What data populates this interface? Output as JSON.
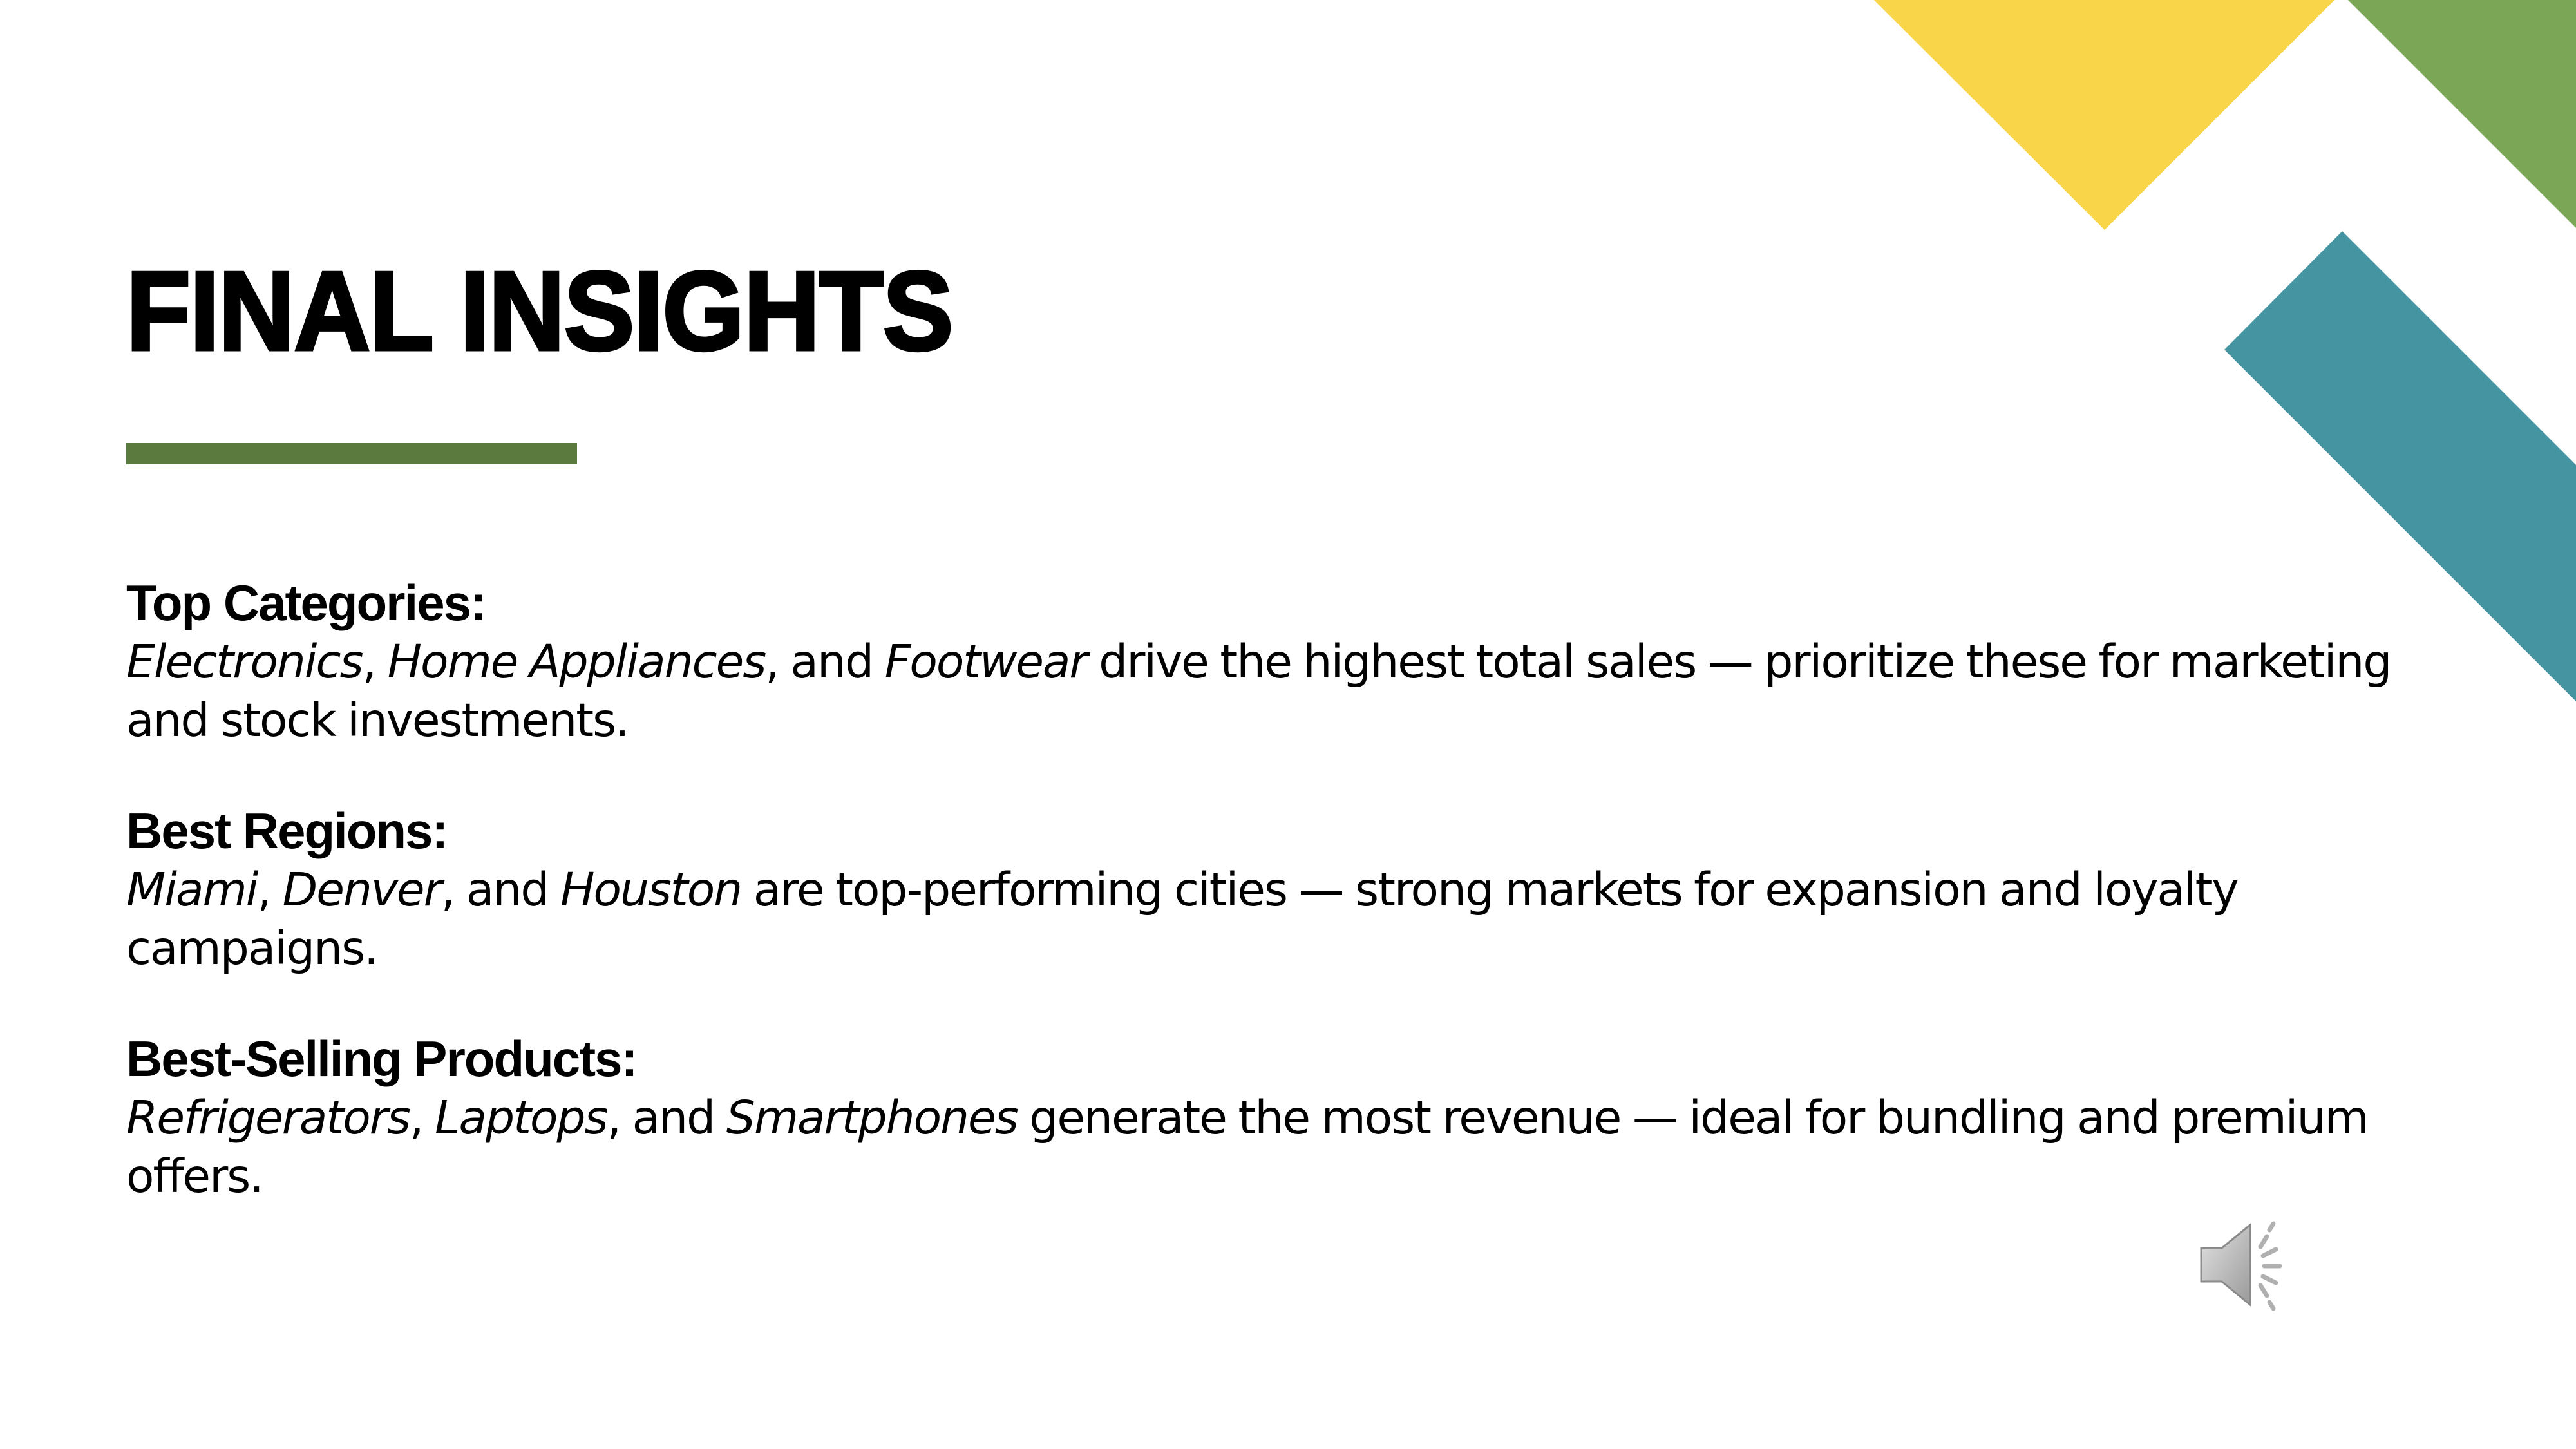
{
  "slide": {
    "title": "FINAL INSIGHTS",
    "colors": {
      "accent_green": "#5a7a3e",
      "yellow": "#f8d549",
      "green": "#7aa655",
      "teal": "#4495a1"
    },
    "insights": [
      {
        "heading": "Top Categories:",
        "items": [
          "Electronics",
          "Home Appliances",
          "Footwear"
        ],
        "sep1": ", ",
        "sep2": ", and ",
        "text": " drive the highest total sales — prioritize these for marketing and stock investments."
      },
      {
        "heading": "Best Regions:",
        "items": [
          "Miami",
          "Denver",
          "Houston"
        ],
        "sep1": ", ",
        "sep2": ", and ",
        "text": " are top-performing cities — strong markets for expansion and loyalty campaigns."
      },
      {
        "heading": "Best-Selling Products:",
        "items": [
          "Refrigerators",
          "Laptops",
          "Smartphones"
        ],
        "sep1": ", ",
        "sep2": ", and ",
        "text": " generate the most revenue — ideal for bundling and premium offers."
      }
    ],
    "audio_icon": "speaker-icon"
  }
}
